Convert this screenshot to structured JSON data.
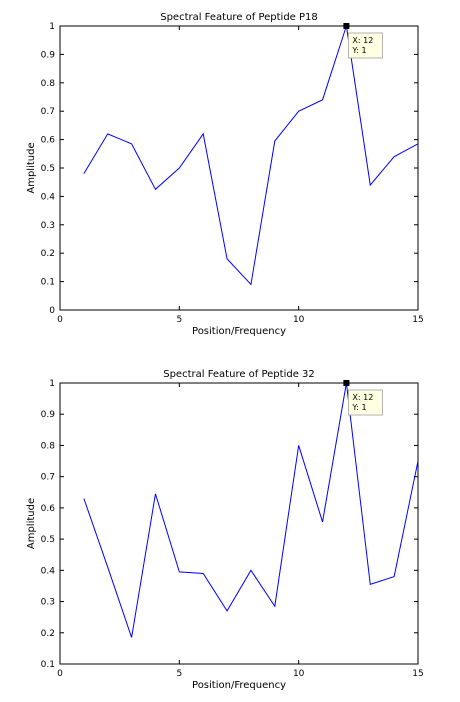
{
  "chart_data": [
    {
      "type": "line",
      "title": "Spectral Feature of Peptide P18",
      "xlabel": "Position/Frequency",
      "ylabel": "Amplitude",
      "xlim": [
        0,
        15
      ],
      "ylim": [
        0,
        1
      ],
      "xticks": [
        "0",
        "5",
        "10",
        "15"
      ],
      "yticks": [
        "0",
        "0.1",
        "0.2",
        "0.3",
        "0.4",
        "0.5",
        "0.6",
        "0.7",
        "0.8",
        "0.9",
        "1"
      ],
      "grid": false,
      "series": [
        {
          "color": "#0000ff",
          "x": [
            1,
            2,
            3,
            4,
            5,
            6,
            7,
            8,
            9,
            10,
            11,
            12,
            13,
            14,
            15
          ],
          "values": [
            0.48,
            0.62,
            0.585,
            0.425,
            0.5,
            0.62,
            0.18,
            0.09,
            0.595,
            0.7,
            0.74,
            1.0,
            0.44,
            0.54,
            0.585
          ]
        }
      ],
      "datatip": {
        "x": 12,
        "y": 1,
        "line1": "X: 12",
        "line2": "Y: 1"
      }
    },
    {
      "type": "line",
      "title": "Spectral Feature of Peptide 32",
      "xlabel": "Position/Frequency",
      "ylabel": "Amplitude",
      "xlim": [
        0,
        15
      ],
      "ylim": [
        0.1,
        1
      ],
      "xticks": [
        "0",
        "5",
        "10",
        "15"
      ],
      "yticks": [
        "0.1",
        "0.2",
        "0.3",
        "0.4",
        "0.5",
        "0.6",
        "0.7",
        "0.8",
        "0.9",
        "1"
      ],
      "grid": false,
      "series": [
        {
          "color": "#0000ff",
          "x": [
            1,
            2,
            3,
            4,
            5,
            6,
            7,
            8,
            9,
            10,
            11,
            12,
            13,
            14,
            15
          ],
          "values": [
            0.63,
            0.41,
            0.185,
            0.645,
            0.395,
            0.39,
            0.27,
            0.4,
            0.285,
            0.8,
            0.555,
            1.0,
            0.355,
            0.38,
            0.75
          ]
        }
      ],
      "datatip": {
        "x": 12,
        "y": 1,
        "line1": "X: 12",
        "line2": "Y: 1"
      }
    }
  ]
}
